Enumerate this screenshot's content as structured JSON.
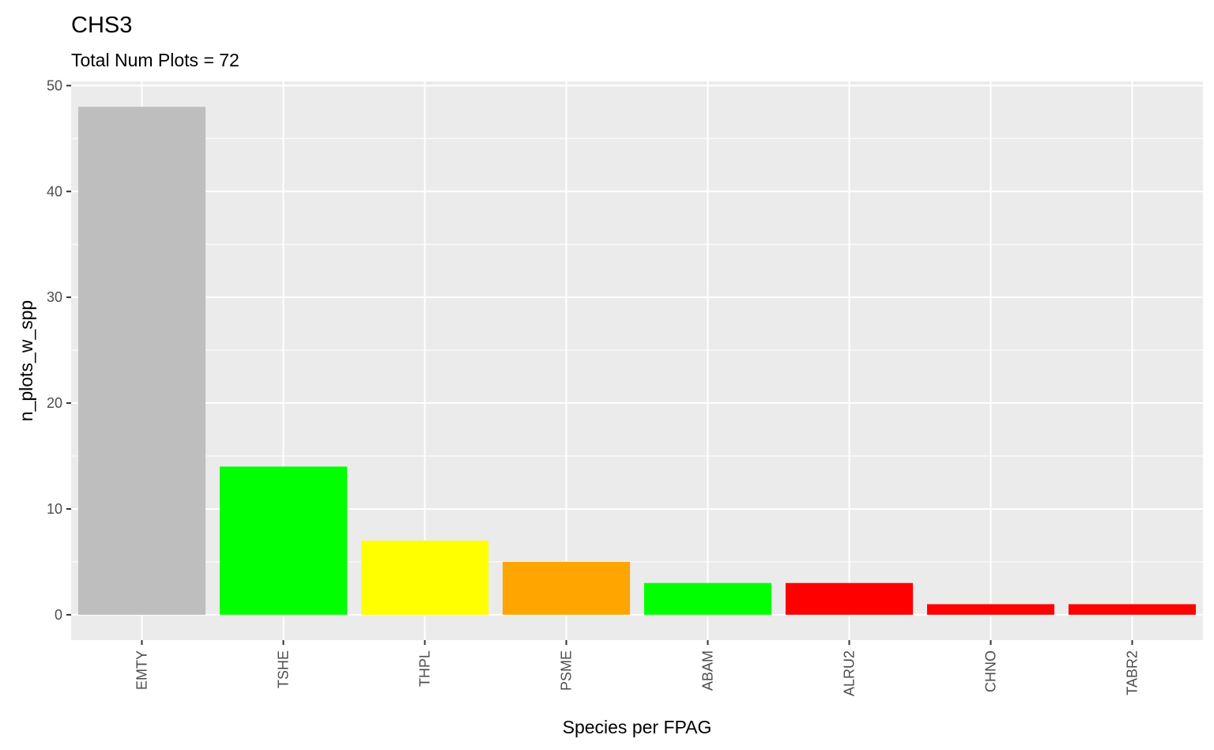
{
  "chart_data": {
    "type": "bar",
    "title": "CHS3",
    "subtitle": "Total Num Plots = 72",
    "xlabel": "Species per FPAG",
    "ylabel": "n_plots_w_spp",
    "categories": [
      "EMTY",
      "TSHE",
      "THPL",
      "PSME",
      "ABAM",
      "ALRU2",
      "CHNO",
      "TABR2"
    ],
    "values": [
      48,
      14,
      7,
      5,
      3,
      3,
      1,
      1
    ],
    "colors": [
      "#bebebe",
      "#00ff00",
      "#ffff00",
      "#ffa500",
      "#00ff00",
      "#ff0000",
      "#ff0000",
      "#ff0000"
    ],
    "ylim": [
      -2.4,
      50.4
    ],
    "yticks": [
      0,
      10,
      20,
      30,
      40,
      50
    ],
    "grid": true,
    "panel_background": "#ebebeb",
    "grid_color": "#ffffff"
  }
}
